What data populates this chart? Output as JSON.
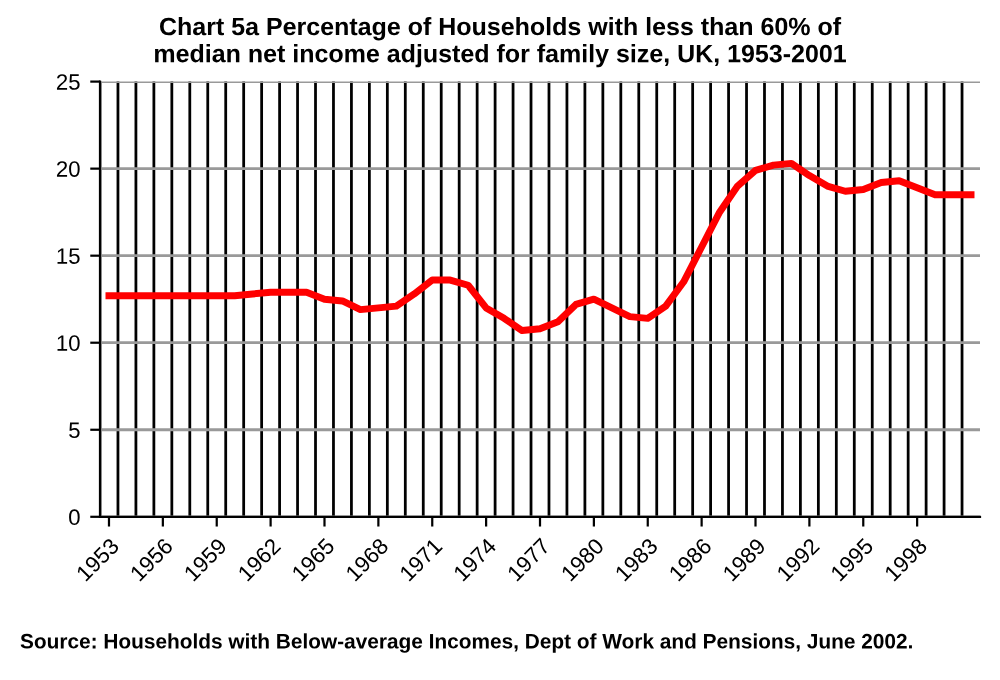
{
  "chart_data": {
    "type": "line",
    "title": "Chart 5a Percentage of Households with less than 60% of\nmedian net income adjusted for family size, UK, 1953-2001",
    "categories": [
      "1953",
      null,
      null,
      "1956",
      null,
      null,
      "1959",
      null,
      null,
      "1962",
      null,
      null,
      "1965",
      null,
      null,
      "1968",
      null,
      null,
      "1971",
      null,
      null,
      "1974",
      null,
      null,
      "1977",
      null,
      null,
      "1980",
      null,
      null,
      "1983",
      null,
      null,
      "1986",
      null,
      null,
      "1989",
      null,
      null,
      "1992",
      null,
      null,
      "1995",
      null,
      null,
      "1998",
      null,
      null,
      null
    ],
    "series": [
      {
        "color": "#ff0000",
        "values": [
          12.7,
          12.7,
          12.7,
          12.7,
          12.7,
          12.7,
          12.7,
          12.7,
          12.8,
          12.9,
          12.9,
          12.9,
          12.5,
          12.4,
          11.9,
          12.0,
          12.1,
          12.8,
          13.6,
          13.6,
          13.3,
          12.0,
          11.4,
          10.7,
          10.8,
          11.2,
          12.2,
          12.5,
          12.0,
          11.5,
          11.4,
          12.1,
          13.5,
          15.5,
          17.5,
          19.0,
          19.9,
          20.2,
          20.3,
          19.6,
          19.0,
          18.7,
          18.8,
          19.2,
          19.3,
          18.9,
          18.5,
          18.5,
          18.5
        ]
      }
    ],
    "ylim": [
      0,
      25
    ],
    "yticks": [
      0,
      5,
      10,
      15,
      20,
      25
    ],
    "grid": true,
    "marker": "none",
    "line_style": "solid",
    "annotations": [
      "Source: Households with Below-average Incomes, Dept of Work and Pensions, June 2002."
    ]
  }
}
